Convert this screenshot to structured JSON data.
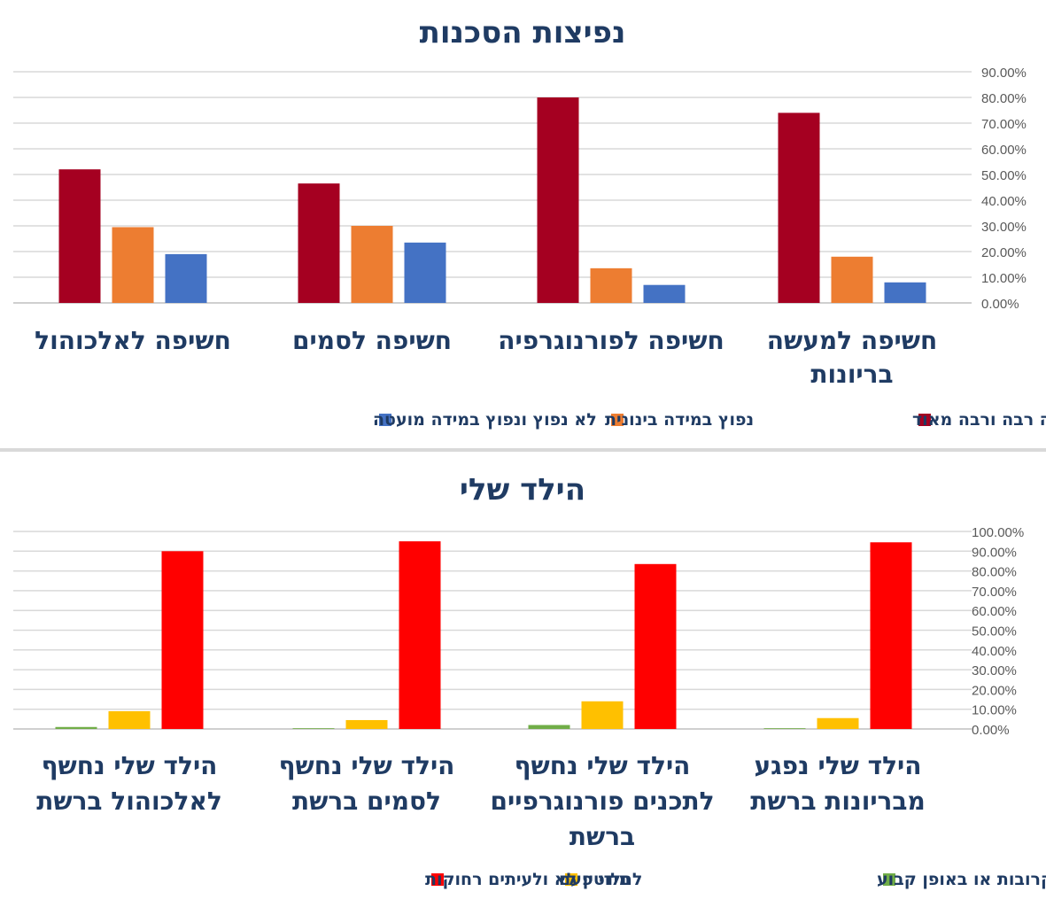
{
  "chart_data": [
    {
      "type": "bar",
      "title": "נפיצות הסכנות",
      "categories": [
        "חשיפה למעשה בריונות",
        "חשיפה לפורנוגרפיה",
        "חשיפה לסמים",
        "חשיפה לאלכוהול"
      ],
      "category_lines": [
        [
          "חשיפה למעשה",
          "בריונות"
        ],
        [
          "חשיפה לפורנוגרפיה"
        ],
        [
          "חשיפה לסמים"
        ],
        [
          "חשיפה לאלכוהול"
        ]
      ],
      "series": [
        {
          "name": "נפוץ במידה רבה ורבה מאוד",
          "color": "#a50021",
          "values": [
            74,
            80,
            46.5,
            52
          ]
        },
        {
          "name": "נפוץ במידה בינונית",
          "color": "#ed7d31",
          "values": [
            18,
            13.5,
            30,
            29.5
          ]
        },
        {
          "name": "לא נפוץ ונפוץ במידה מועטה",
          "color": "#4472c4",
          "values": [
            8,
            7,
            23.5,
            19
          ]
        }
      ],
      "ylim": [
        0,
        90
      ],
      "yticks": [
        "0.00%",
        "10.00%",
        "20.00%",
        "30.00%",
        "40.00%",
        "50.00%",
        "60.00%",
        "70.00%",
        "80.00%",
        "90.00%"
      ],
      "legend_position": "bottom",
      "grid": true
    },
    {
      "type": "bar",
      "title": "הילד שלי",
      "categories": [
        "הילד שלי נפגע מבריונות ברשת",
        "הילד שלי נחשף לתכנים פורנוגרפיים ברשת",
        "הילד שלי נחשף לסמים ברשת",
        "הילד שלי נחשף לאלכוהול ברשת"
      ],
      "category_lines": [
        [
          "הילד שלי נפגע",
          "מבריונות ברשת"
        ],
        [
          "הילד שלי נחשף",
          "לתכנים פורנוגרפיים",
          "ברשת"
        ],
        [
          "הילד שלי נחשף",
          "לסמים ברשת"
        ],
        [
          "הילד שלי נחשף",
          "לאלכוהול ברשת"
        ]
      ],
      "series": [
        {
          "name": "לעיתים קרובות או באופן קבוע",
          "color": "#70ad47",
          "values": [
            0,
            2,
            0,
            1
          ]
        },
        {
          "name": "מידי פעם",
          "color": "#ffc000",
          "values": [
            5.5,
            14,
            4.5,
            9
          ]
        },
        {
          "name": "לחלוטין לא ולעיתים רחוקות",
          "color": "#ff0000",
          "values": [
            94.5,
            83.5,
            95,
            90
          ]
        }
      ],
      "ylim": [
        0,
        100
      ],
      "yticks": [
        "0.00%",
        "10.00%",
        "20.00%",
        "30.00%",
        "40.00%",
        "50.00%",
        "60.00%",
        "70.00%",
        "80.00%",
        "90.00%",
        "100.00%"
      ],
      "legend_position": "bottom",
      "grid": true
    }
  ]
}
